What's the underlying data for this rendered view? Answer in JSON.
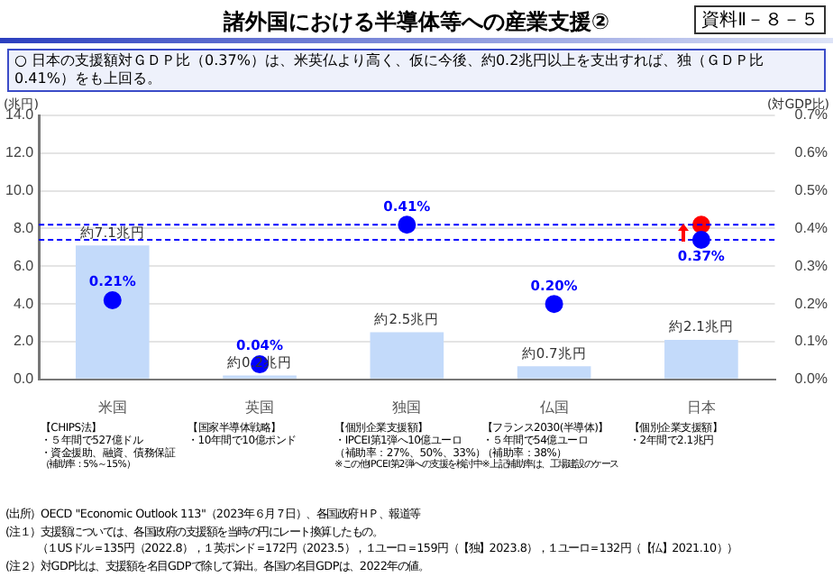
{
  "chart_data": {
    "type": "bar",
    "title": "諸外国における半導体等への産業支援②",
    "categories": [
      "米国",
      "英国",
      "独国",
      "仏国",
      "日本"
    ],
    "series": [
      {
        "color": "#c3dafa",
        "values": [
          7.1,
          0.2,
          2.5,
          0.7,
          2.1
        ],
        "value_labels": [
          "約7.1兆円",
          "約0.2兆円",
          "約2.5兆円",
          "約0.7兆円",
          "約2.1兆円"
        ]
      },
      {
        "type": "scatter",
        "axis": "y2",
        "color": "#0000ff",
        "values": [
          0.21,
          0.04,
          0.41,
          0.2,
          0.37
        ],
        "value_labels": [
          "0.21%",
          "0.04%",
          "0.41%",
          "0.20%",
          "0.37%"
        ]
      },
      {
        "type": "scatter",
        "axis": "y2",
        "color": "#ff0000",
        "values": [
          null,
          null,
          null,
          null,
          0.41
        ]
      }
    ],
    "ylabel": "(兆円)",
    "y2label": "(対GDP比)",
    "ylim": [
      0,
      14
    ],
    "yticks": [
      {
        "value": 0,
        "label": "0.0"
      },
      {
        "value": 2,
        "label": "2.0"
      },
      {
        "value": 4,
        "label": "4.0"
      },
      {
        "value": 6,
        "label": "6.0"
      },
      {
        "value": 8,
        "label": "8.0"
      },
      {
        "value": 10,
        "label": "10.0"
      },
      {
        "value": 12,
        "label": "12.0"
      },
      {
        "value": 14,
        "label": "14.0"
      }
    ],
    "y2lim": [
      0,
      0.7
    ],
    "y2ticks": [
      {
        "value": 0,
        "label": "0.0%"
      },
      {
        "value": 0.1,
        "label": "0.1%"
      },
      {
        "value": 0.2,
        "label": "0.2%"
      },
      {
        "value": 0.3,
        "label": "0.3%"
      },
      {
        "value": 0.4,
        "label": "0.4%"
      },
      {
        "value": 0.5,
        "label": "0.5%"
      },
      {
        "value": 0.6,
        "label": "0.6%"
      },
      {
        "value": 0.7,
        "label": "0.7%"
      }
    ],
    "ref_lines": [
      {
        "axis": "y2",
        "value": 0.41,
        "color": "#0000ff",
        "line_style": "dashed"
      },
      {
        "axis": "y2",
        "value": 0.37,
        "color": "#0000ff",
        "line_style": "dashed"
      }
    ],
    "grid": "y",
    "legend": false,
    "marker": "circle",
    "annotations": [
      "資料Ⅱ－８－５",
      "○ 日本の支援額対ＧＤＰ比（0.37%）は、米英仏より高く、仮に今後、約0.2兆円以上を支出すれば、独（ＧＤＰ比0.41%）をも上回る。",
      "【CHIPS法】",
      "・５年間で527億ドル",
      "・資金援助、融資、債務保証",
      "（補助率：5%～15%）",
      "【国家半導体戦略】",
      "・10年間で10億ポンド",
      "【個別企業支援額】",
      "・IPCEI第1弾へ10億ユーロ",
      "（補助率：27%、50%、33%）",
      "※この他IPCEI第2弾への支援を検討中",
      "【フランス2030(半導体)】",
      "・５年間で54億ユーロ",
      "（補助率：38%）",
      "※上記補助率は、工場建設のケース",
      "【個別企業支援額】",
      "・2年間で2.1兆円",
      "(出所）OECD \"Economic Outlook 113\"（2023年６月７日）、各国政府ＨＰ、報道等",
      "(注１）支援額については、各国政府の支援額を当時の円にレート換算したもの。",
      "　　　（１USドル＝135円（2022.8），１英ポンド＝172円（2023.5），１ユーロ＝159円（【独】2023.8），１ユーロ＝132円（【仏】2021.10））",
      "(注２）対GDP比は、支援額を名目GDPで除して算出。各国の名目GDPは、2022年の値。"
    ]
  }
}
